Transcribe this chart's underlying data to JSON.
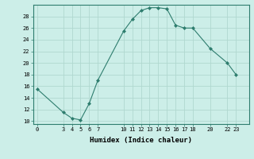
{
  "x": [
    0,
    3,
    4,
    5,
    6,
    7,
    10,
    11,
    12,
    13,
    14,
    15,
    16,
    17,
    18,
    20,
    22,
    23
  ],
  "y": [
    15.5,
    11.5,
    10.5,
    10.2,
    13.0,
    17.0,
    25.5,
    27.5,
    29.0,
    29.5,
    29.5,
    29.3,
    26.5,
    26.0,
    26.0,
    22.5,
    20.0,
    18.0
  ],
  "line_color": "#2e7d6e",
  "marker": "D",
  "marker_size": 2.0,
  "bg_color": "#cceee8",
  "grid_color": "#b0d8d0",
  "xlabel": "Humidex (Indice chaleur)",
  "xticks": [
    0,
    3,
    4,
    5,
    6,
    7,
    10,
    11,
    12,
    13,
    14,
    15,
    16,
    17,
    18,
    20,
    22,
    23
  ],
  "yticks": [
    10,
    12,
    14,
    16,
    18,
    20,
    22,
    24,
    26,
    28
  ],
  "ylim": [
    9.5,
    30.0
  ],
  "xlim": [
    -0.5,
    24.5
  ]
}
